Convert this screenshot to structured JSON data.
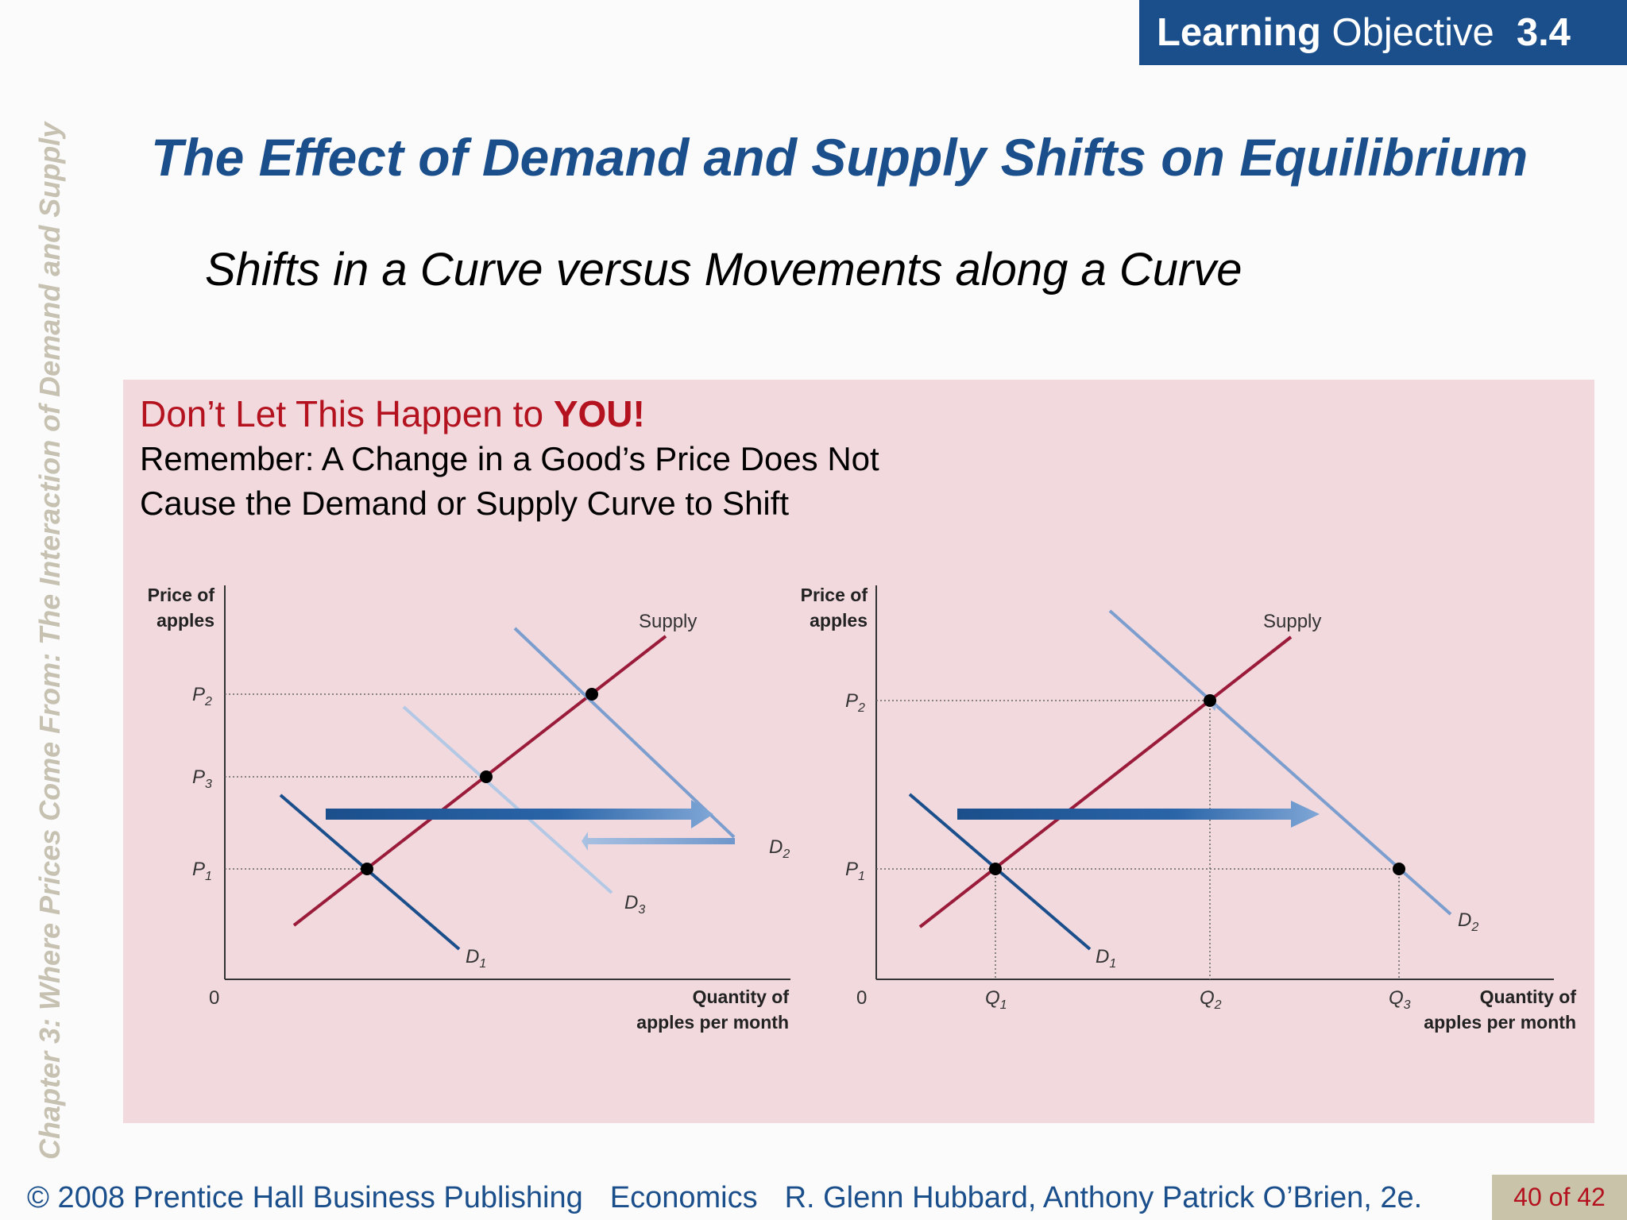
{
  "learning_objective": {
    "label_bold": "Learning",
    "label_rest": "Objective",
    "number": "3.4"
  },
  "side_title": "Chapter 3: Where Prices Come From: The Interaction of Demand and Supply",
  "title": "The Effect of Demand and Supply Shifts on Equilibrium",
  "subtitle": "Shifts in a Curve versus Movements along a Curve",
  "callout": {
    "heading_prefix": "Don’t Let This Happen to ",
    "heading_emphasis": "YOU!",
    "line1": "Remember: A Change in a Good’s Price Does Not",
    "line2": "Cause the Demand or Supply Curve to Shift"
  },
  "graph_left": {
    "ylabel_line1": "Price of",
    "ylabel_line2": "apples",
    "xlabel_line1": "Quantity of",
    "xlabel_line2": "apples per month",
    "origin": "0",
    "supply_label": "Supply",
    "prices": [
      {
        "letter": "P",
        "sub": "2"
      },
      {
        "letter": "P",
        "sub": "3"
      },
      {
        "letter": "P",
        "sub": "1"
      }
    ],
    "curves": [
      {
        "letter": "D",
        "sub": "1"
      },
      {
        "letter": "D",
        "sub": "2"
      },
      {
        "letter": "D",
        "sub": "3"
      }
    ]
  },
  "graph_right": {
    "ylabel_line1": "Price of",
    "ylabel_line2": "apples",
    "xlabel_line1": "Quantity of",
    "xlabel_line2": "apples per month",
    "origin": "0",
    "supply_label": "Supply",
    "prices": [
      {
        "letter": "P",
        "sub": "2"
      },
      {
        "letter": "P",
        "sub": "1"
      }
    ],
    "quantities": [
      {
        "letter": "Q",
        "sub": "1"
      },
      {
        "letter": "Q",
        "sub": "2"
      },
      {
        "letter": "Q",
        "sub": "3"
      }
    ],
    "curves": [
      {
        "letter": "D",
        "sub": "1"
      },
      {
        "letter": "D",
        "sub": "2"
      }
    ]
  },
  "colors": {
    "brand_blue": "#1b4f8c",
    "supply_red": "#9b1b3a",
    "callout_bg": "#f1d9de",
    "warn_red": "#b3121e"
  },
  "footer": {
    "copyright": "© 2008 Prentice Hall Business Publishing",
    "book": "Economics",
    "authors": "R. Glenn Hubbard, Anthony Patrick O’Brien, 2e.",
    "page": "40 of 42"
  }
}
